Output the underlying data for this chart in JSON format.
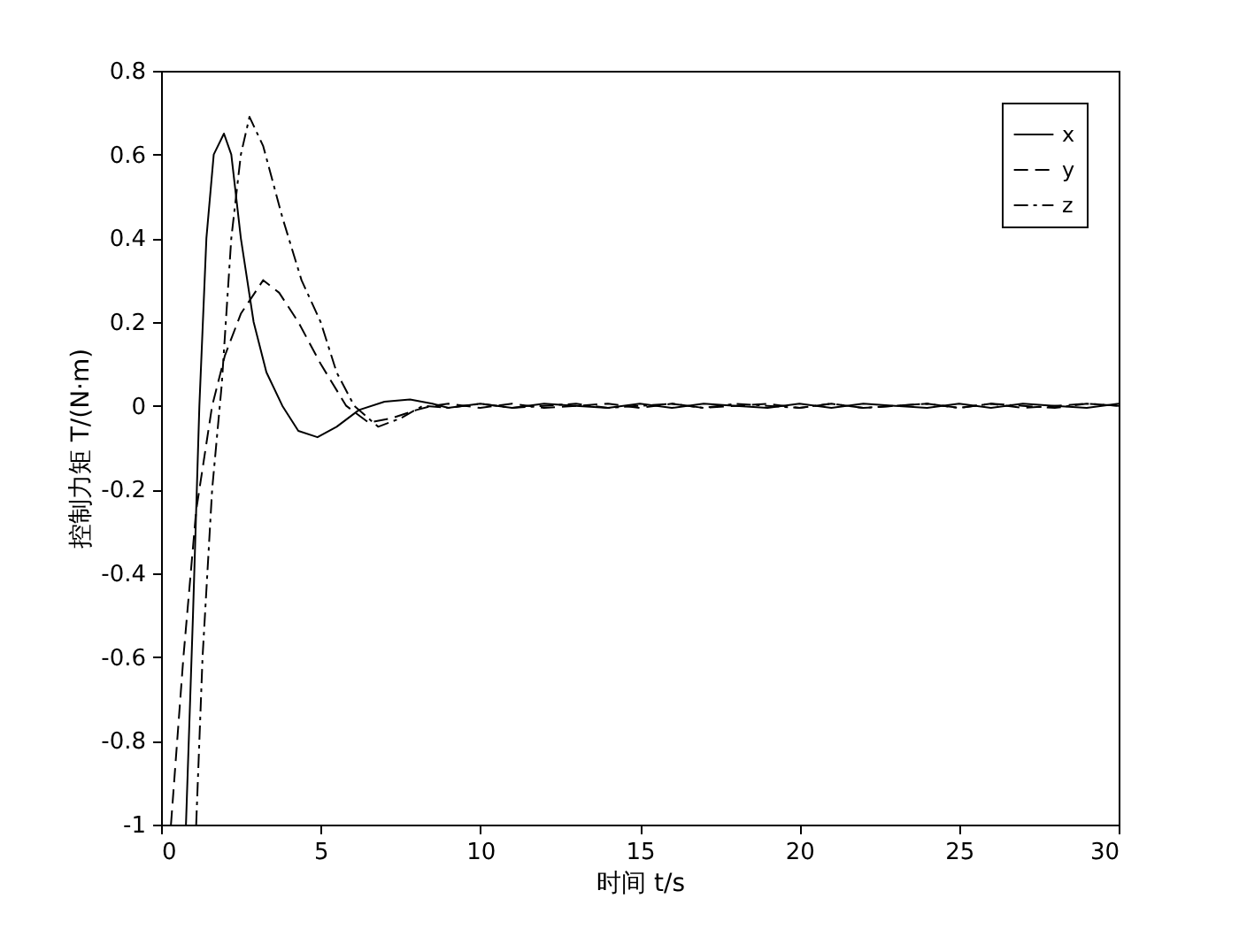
{
  "chart_data": {
    "type": "line",
    "xlabel": "时间  t/s",
    "ylabel": "控制力矩  T/(N·m)",
    "xlim": [
      0,
      30
    ],
    "ylim": [
      -1,
      0.8
    ],
    "xticks": [
      0,
      5,
      10,
      15,
      20,
      25,
      30
    ],
    "yticks": [
      -1,
      -0.8,
      -0.6,
      -0.4,
      -0.2,
      0,
      0.2,
      0.4,
      0.6,
      0.8
    ],
    "grid": false,
    "legend": "top right",
    "marker": "none",
    "series": [
      {
        "name": "x",
        "color": "#000000",
        "line_style": "solid",
        "x": [
          0.78,
          1.0,
          1.2,
          1.42,
          1.65,
          1.97,
          2.2,
          2.5,
          2.9,
          3.3,
          3.8,
          4.3,
          4.9,
          5.5,
          6.2,
          7,
          7.8,
          8.5,
          9,
          10,
          11,
          12,
          13,
          14,
          15,
          16,
          17,
          18,
          19,
          20,
          21,
          22,
          23,
          24,
          25,
          26,
          27,
          28,
          29,
          30
        ],
        "values": [
          -1,
          -0.5,
          0,
          0.4,
          0.6,
          0.65,
          0.6,
          0.4,
          0.2,
          0.08,
          0,
          -0.06,
          -0.075,
          -0.05,
          -0.01,
          0.01,
          0.015,
          0.005,
          -0.005,
          0.005,
          -0.005,
          0.005,
          0,
          -0.005,
          0.005,
          -0.005,
          0.005,
          0,
          -0.005,
          0.005,
          -0.005,
          0.005,
          0,
          -0.005,
          0.005,
          -0.005,
          0.005,
          0,
          -0.005,
          0.005
        ]
      },
      {
        "name": "y",
        "color": "#000000",
        "line_style": "dashed",
        "x": [
          0.31,
          0.7,
          1.1,
          1.6,
          2.0,
          2.5,
          3.2,
          3.7,
          4.3,
          5.0,
          5.8,
          6.5,
          7.2,
          8,
          8.5,
          9,
          10,
          11,
          12,
          13,
          14,
          15,
          16,
          17,
          18,
          19,
          20,
          21,
          22,
          23,
          24,
          25,
          26,
          27,
          28,
          29,
          30
        ],
        "values": [
          -1,
          -0.6,
          -0.25,
          0,
          0.12,
          0.22,
          0.3,
          0.27,
          0.2,
          0.1,
          0,
          -0.04,
          -0.03,
          -0.01,
          0,
          0.005,
          -0.005,
          0.005,
          -0.005,
          0,
          0.005,
          -0.005,
          0.005,
          -0.005,
          0,
          0.005,
          -0.005,
          0.005,
          -0.005,
          0,
          0.005,
          -0.005,
          0.005,
          -0.005,
          0,
          0.005,
          0
        ]
      },
      {
        "name": "z",
        "color": "#000000",
        "line_style": "dashdot",
        "x": [
          1.1,
          1.3,
          1.6,
          1.9,
          2.2,
          2.5,
          2.77,
          3.2,
          3.8,
          4.4,
          5.0,
          5.5,
          6.05,
          6.8,
          7.5,
          8.2,
          9,
          10,
          11,
          12,
          13,
          14,
          15,
          16,
          17,
          18,
          19,
          20,
          21,
          22,
          23,
          24,
          25,
          26,
          27,
          28,
          29,
          30
        ],
        "values": [
          -1,
          -0.6,
          -0.2,
          0.05,
          0.4,
          0.6,
          0.69,
          0.62,
          0.45,
          0.3,
          0.2,
          0.08,
          0,
          -0.05,
          -0.03,
          0,
          -0.005,
          0.005,
          -0.005,
          0,
          0.005,
          -0.005,
          0,
          0.005,
          -0.005,
          0.005,
          0,
          -0.005,
          0.005,
          -0.005,
          0,
          0.005,
          -0.005,
          0.005,
          0,
          -0.005,
          0.005,
          0
        ]
      }
    ]
  }
}
